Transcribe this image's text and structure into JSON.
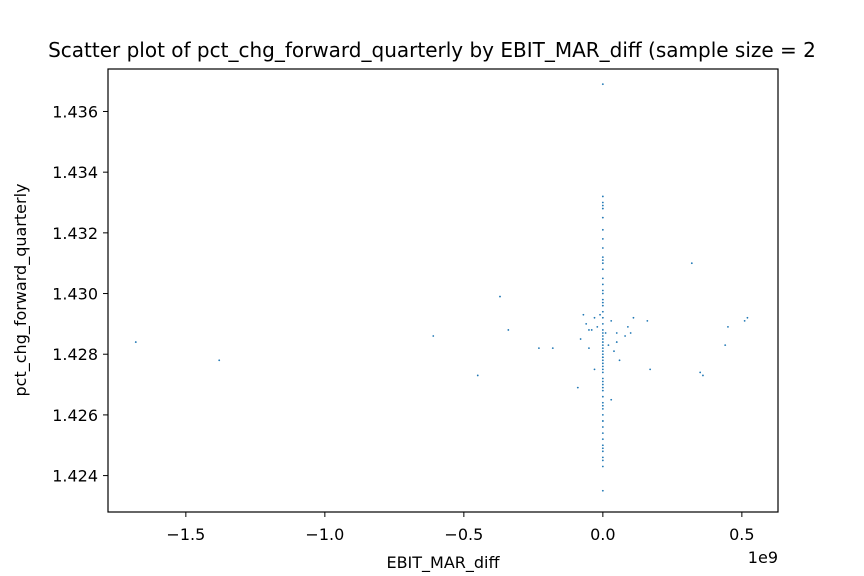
{
  "chart_data": {
    "type": "scatter",
    "title": "Scatter plot of pct_chg_forward_quarterly by EBIT_MAR_diff (sample size = 2",
    "xlabel": "EBIT_MAR_diff",
    "ylabel": "pct_chg_forward_quarterly",
    "x_offset_label": "1e9",
    "xlim": [
      -1.78,
      0.63
    ],
    "ylim": [
      1.4228,
      1.4374
    ],
    "x_ticks": [
      -1.5,
      -1.0,
      -0.5,
      0.0,
      0.5
    ],
    "x_tick_labels": [
      "−1.5",
      "−1.0",
      "−0.5",
      "0.0",
      "0.5"
    ],
    "y_ticks": [
      1.424,
      1.426,
      1.428,
      1.43,
      1.432,
      1.434,
      1.436
    ],
    "y_tick_labels": [
      "1.424",
      "1.426",
      "1.428",
      "1.430",
      "1.432",
      "1.434",
      "1.436"
    ],
    "grid": false,
    "point_color": "#1f77b4",
    "x": [
      -1.68,
      -1.38,
      -0.61,
      -0.45,
      -0.37,
      -0.34,
      -0.23,
      -0.18,
      -0.09,
      -0.08,
      -0.07,
      -0.06,
      -0.05,
      -0.04,
      -0.03,
      -0.02,
      -0.01,
      0.01,
      0.02,
      0.03,
      0.04,
      0.05,
      0.06,
      0.09,
      0.1,
      0.11,
      0.16,
      0.17,
      0.32,
      0.35,
      0.36,
      0.44,
      0.45,
      0.51,
      0.52,
      -0.05,
      -0.03,
      0.03,
      0.05,
      0.08,
      0.0,
      0.0,
      0.0,
      0.0,
      0.0,
      0.0,
      0.0,
      0.0,
      0.0,
      0.0,
      0.0,
      0.0,
      0.0,
      0.0,
      0.0,
      0.0,
      0.0,
      0.0,
      0.0,
      0.0,
      0.0,
      0.0,
      0.0,
      0.0,
      0.0,
      0.0,
      0.0,
      0.0,
      0.0,
      0.0,
      0.0,
      0.0,
      0.0,
      0.0,
      0.0,
      0.0,
      0.0,
      0.0,
      0.0,
      0.0,
      0.0,
      0.0,
      0.0,
      0.0,
      0.0,
      0.0,
      0.0,
      0.0,
      0.0,
      0.0,
      0.0,
      0.0,
      0.0,
      0.0,
      0.0,
      0.0,
      0.0,
      0.0,
      0.0,
      0.0,
      0.0
    ],
    "y": [
      1.4284,
      1.4278,
      1.4286,
      1.4273,
      1.4299,
      1.4288,
      1.4282,
      1.4282,
      1.4269,
      1.4285,
      1.4293,
      1.429,
      1.4282,
      1.4288,
      1.4275,
      1.4289,
      1.4293,
      1.4287,
      1.4283,
      1.4265,
      1.4281,
      1.4284,
      1.4278,
      1.4289,
      1.4287,
      1.4292,
      1.4291,
      1.4275,
      1.431,
      1.4274,
      1.4273,
      1.4283,
      1.4289,
      1.4291,
      1.4292,
      1.4288,
      1.4292,
      1.4291,
      1.4287,
      1.4286,
      1.4369,
      1.4332,
      1.433,
      1.4328,
      1.4325,
      1.4321,
      1.4318,
      1.4315,
      1.4312,
      1.431,
      1.4308,
      1.4305,
      1.4303,
      1.43,
      1.4298,
      1.4296,
      1.4294,
      1.4292,
      1.429,
      1.4288,
      1.4287,
      1.4285,
      1.4284,
      1.4283,
      1.4282,
      1.428,
      1.4279,
      1.4278,
      1.4277,
      1.4276,
      1.4275,
      1.4274,
      1.4272,
      1.427,
      1.4268,
      1.4266,
      1.4264,
      1.4262,
      1.426,
      1.4258,
      1.4256,
      1.4254,
      1.4252,
      1.425,
      1.4248,
      1.4246,
      1.4243,
      1.4235,
      1.4329,
      1.4311,
      1.4301,
      1.4297,
      1.4286,
      1.4281,
      1.4279,
      1.4271,
      1.4269,
      1.4263,
      1.4258,
      1.4249,
      1.4245
    ]
  }
}
